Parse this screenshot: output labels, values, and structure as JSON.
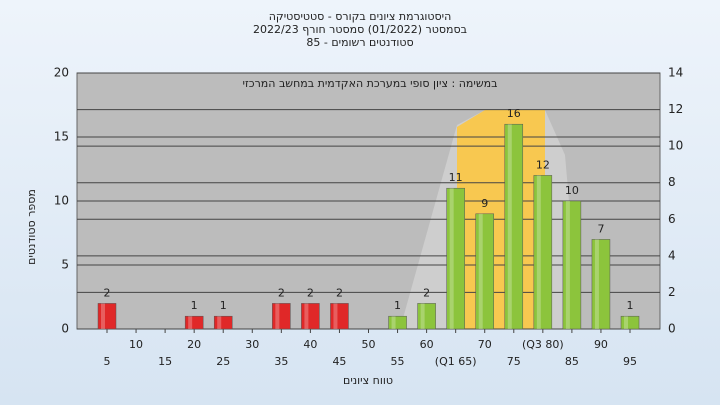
{
  "chart_data": {
    "type": "bar",
    "title": [
      "היסטוגרמת ציונים בקורס - סטטיסטיקה",
      "בסמסטר  (01/2022)  סמסטר חורף  2022/23",
      "סטודנטים רשומים - 85"
    ],
    "annotation": "במשימה : ציון סופי במערכת האקדמית במחשב המרכזי",
    "y_label": "מספר סטודנטים",
    "x_label": "טווח ציונים",
    "categories": [
      "5",
      "10",
      "15",
      "20",
      "25",
      "30",
      "35",
      "40",
      "45",
      "50",
      "55",
      "60",
      "(Q1 65)",
      "70",
      "75",
      "(Q3 80)",
      "85",
      "90",
      "95"
    ],
    "values": [
      2,
      0,
      0,
      1,
      1,
      0,
      2,
      2,
      2,
      0,
      1,
      2,
      11,
      9,
      16,
      12,
      10,
      7,
      1
    ],
    "colors": [
      "#e02828",
      "#e02828",
      "#e02828",
      "#e02828",
      "#e02828",
      "#e02828",
      "#e02828",
      "#e02828",
      "#e02828",
      "#e02828",
      "#8cc43c",
      "#8cc43c",
      "#8cc43c",
      "#8cc43c",
      "#8cc43c",
      "#8cc43c",
      "#8cc43c",
      "#8cc43c",
      "#8cc43c"
    ],
    "ylim": [
      0,
      20
    ],
    "yticks": [
      0,
      5,
      10,
      15,
      20
    ],
    "y2lim": [
      0,
      14
    ],
    "y2ticks": [
      0,
      2,
      4,
      6,
      8,
      10,
      12,
      14
    ],
    "grid": true
  }
}
